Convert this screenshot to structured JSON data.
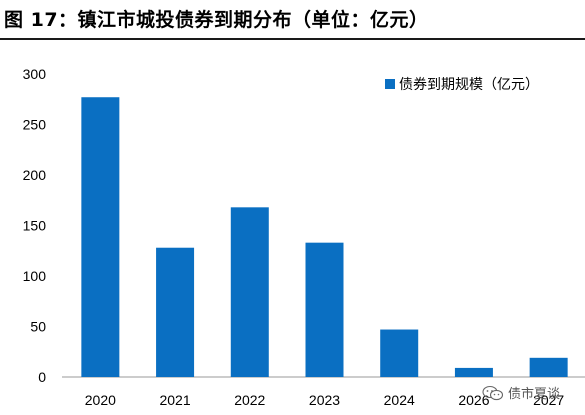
{
  "figure": {
    "title": "图 17：镇江市城投债券到期分布（单位：亿元）"
  },
  "chart_data": {
    "type": "bar",
    "categories": [
      "2020",
      "2021",
      "2022",
      "2023",
      "2024",
      "2026",
      "2027"
    ],
    "series": [
      {
        "name": "债券到期规模（亿元）",
        "values": [
          277,
          128,
          168,
          133,
          47,
          9,
          19
        ],
        "color": "#0a6fc2"
      }
    ],
    "ylim": [
      0,
      300
    ],
    "yticks": [
      0,
      50,
      100,
      150,
      200,
      250,
      300
    ],
    "grid": false,
    "legend_position": "top-right"
  },
  "watermark": {
    "text": "债市夏谈",
    "icon": "wechat-icon"
  }
}
